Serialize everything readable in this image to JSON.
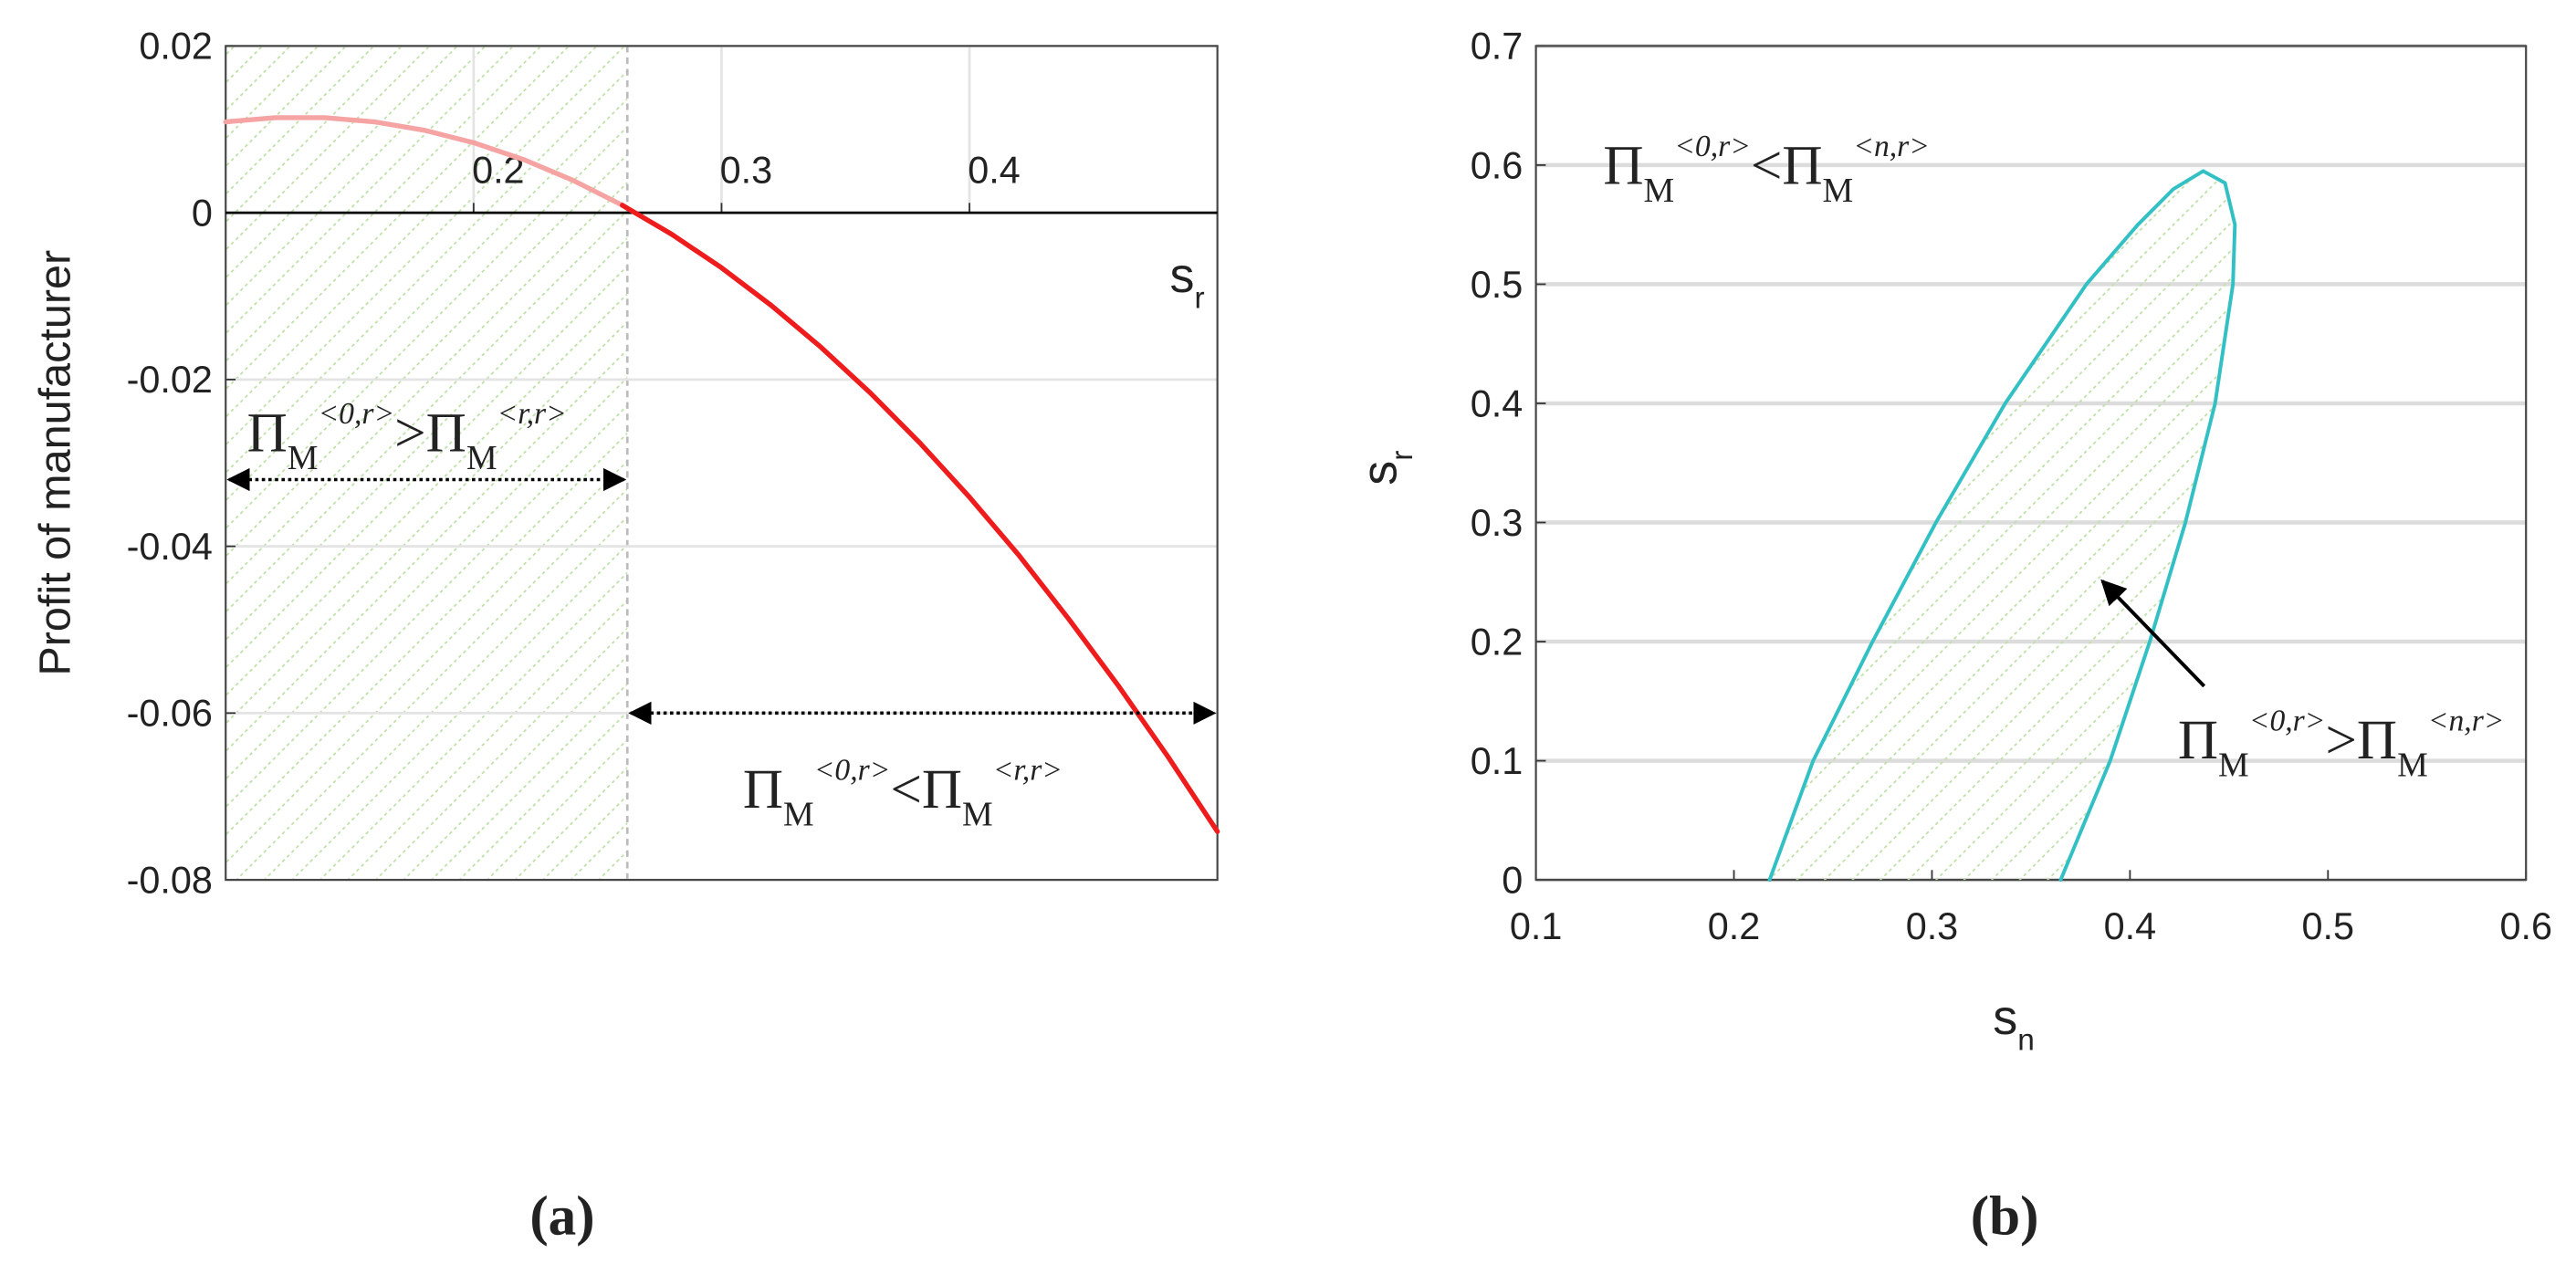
{
  "chart_data": [
    {
      "type": "line",
      "caption": "(a)",
      "ylabel": "Profit of manufacturer",
      "xlabel": {
        "text": "s",
        "sub": "r"
      },
      "x": [
        0.1,
        0.12,
        0.14,
        0.16,
        0.18,
        0.2,
        0.22,
        0.24,
        0.26,
        0.28,
        0.3,
        0.32,
        0.34,
        0.36,
        0.38,
        0.4,
        0.42,
        0.44,
        0.46,
        0.48,
        0.5
      ],
      "series": [
        {
          "color": "#f6a3a3",
          "values": [
            0.0109,
            0.0114,
            0.0114,
            0.0109,
            0.0099,
            0.0084,
            0.0064,
            0.0039,
            0.0009,
            null,
            null,
            null,
            null,
            null,
            null,
            null,
            null,
            null,
            null,
            null,
            null
          ]
        },
        {
          "color": "#ee1c1c",
          "values": [
            null,
            null,
            null,
            null,
            null,
            null,
            null,
            null,
            0.0009,
            -0.0026,
            -0.0066,
            -0.0111,
            -0.0161,
            -0.0216,
            -0.0276,
            -0.0341,
            -0.0411,
            -0.0487,
            -0.0567,
            -0.0652,
            -0.0742
          ]
        }
      ],
      "xlim": [
        0.1,
        0.5
      ],
      "ylim": [
        -0.08,
        0.02
      ],
      "xticks": [
        0.2,
        0.3,
        0.4
      ],
      "yticks": [
        0.02,
        0,
        -0.02,
        -0.04,
        -0.06,
        -0.08
      ],
      "grid": true,
      "shade_xlim": [
        0.1,
        0.262
      ],
      "annotations": [
        {
          "parts": [
            {
              "text": "Π",
              "sub": "M",
              "sup": "<0,r>"
            },
            {
              "text": ">"
            },
            {
              "text": "Π",
              "sub": "M",
              "sup": "<r,r>"
            }
          ]
        },
        {
          "parts": [
            {
              "text": "Π",
              "sub": "M",
              "sup": "<0,r>"
            },
            {
              "text": "<"
            },
            {
              "text": "Π",
              "sub": "M",
              "sup": "<r,r>"
            }
          ]
        }
      ]
    },
    {
      "type": "line",
      "caption": "(b)",
      "ylabel": {
        "text": "s",
        "sub": "r"
      },
      "xlabel": {
        "text": "s",
        "sub": "n"
      },
      "x": [
        0.218,
        0.24,
        0.27,
        0.302,
        0.337,
        0.378,
        0.404,
        0.422,
        0.437,
        0.448,
        0.453,
        0.452,
        0.443,
        0.428,
        0.41,
        0.39,
        0.365
      ],
      "series": [
        {
          "color": "#33c0c4",
          "values": [
            0,
            0.1,
            0.2,
            0.3,
            0.4,
            0.5,
            0.55,
            0.58,
            0.595,
            0.585,
            0.55,
            0.5,
            0.4,
            0.3,
            0.2,
            0.1,
            0
          ]
        }
      ],
      "xlim": [
        0.1,
        0.6
      ],
      "ylim": [
        0,
        0.7
      ],
      "xticks": [
        0.1,
        0.2,
        0.3,
        0.4,
        0.5,
        0.6
      ],
      "yticks": [
        0,
        0.1,
        0.2,
        0.3,
        0.4,
        0.5,
        0.6,
        0.7
      ],
      "grid": true,
      "shaded": true,
      "annotations": [
        {
          "parts": [
            {
              "text": "Π",
              "sub": "M",
              "sup": "<0,r>"
            },
            {
              "text": "<"
            },
            {
              "text": "Π",
              "sub": "M",
              "sup": "<n,r>"
            }
          ]
        },
        {
          "parts": [
            {
              "text": "Π",
              "sub": "M",
              "sup": "<0,r>"
            },
            {
              "text": ">"
            },
            {
              "text": "Π",
              "sub": "M",
              "sup": "<n,r>"
            }
          ]
        }
      ]
    }
  ]
}
